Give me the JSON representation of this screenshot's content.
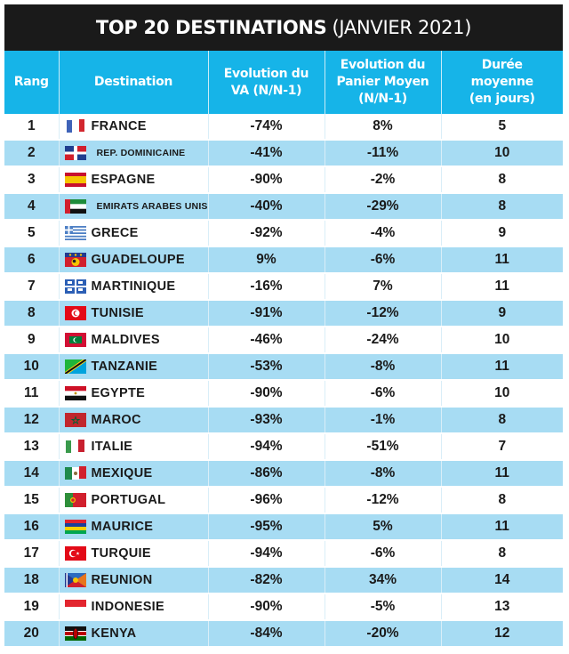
{
  "title": {
    "strong": "TOP 20 DESTINATIONS",
    "light": "(JANVIER 2021)"
  },
  "colors": {
    "title_bg": "#1a1a1a",
    "header_bg": "#16b4e8",
    "row_alt_bg": "#a7dcf3"
  },
  "headers": {
    "rang": "Rang",
    "destination": "Destination",
    "va": [
      "Evolution du",
      "VA (N/N-1)"
    ],
    "panier": [
      "Evolution du",
      "Panier Moyen",
      "(N/N-1)"
    ],
    "duree": [
      "Durée",
      "moyenne",
      "(en jours)"
    ]
  },
  "rows": [
    {
      "rang": "1",
      "flag": "france-flag-icon",
      "destination": "FRANCE",
      "va": "-74%",
      "panier": "8%",
      "duree": "5"
    },
    {
      "rang": "2",
      "flag": "dominican-republic-flag-icon",
      "destination": "REP. DOMINICAINE",
      "va": "-41%",
      "panier": "-11%",
      "duree": "10",
      "small": true
    },
    {
      "rang": "3",
      "flag": "spain-flag-icon",
      "destination": "ESPAGNE",
      "va": "-90%",
      "panier": "-2%",
      "duree": "8"
    },
    {
      "rang": "4",
      "flag": "uae-flag-icon",
      "destination": "EMIRATS ARABES UNIS",
      "va": "-40%",
      "panier": "-29%",
      "duree": "8",
      "small": true
    },
    {
      "rang": "5",
      "flag": "greece-flag-icon",
      "destination": "GRECE",
      "va": "-92%",
      "panier": "-4%",
      "duree": "9"
    },
    {
      "rang": "6",
      "flag": "guadeloupe-flag-icon",
      "destination": "GUADELOUPE",
      "va": "9%",
      "panier": "-6%",
      "duree": "11"
    },
    {
      "rang": "7",
      "flag": "martinique-flag-icon",
      "destination": "MARTINIQUE",
      "va": "-16%",
      "panier": "7%",
      "duree": "11"
    },
    {
      "rang": "8",
      "flag": "tunisia-flag-icon",
      "destination": "TUNISIE",
      "va": "-91%",
      "panier": "-12%",
      "duree": "9"
    },
    {
      "rang": "9",
      "flag": "maldives-flag-icon",
      "destination": "MALDIVES",
      "va": "-46%",
      "panier": "-24%",
      "duree": "10"
    },
    {
      "rang": "10",
      "flag": "tanzania-flag-icon",
      "destination": "TANZANIE",
      "va": "-53%",
      "panier": "-8%",
      "duree": "11"
    },
    {
      "rang": "11",
      "flag": "egypt-flag-icon",
      "destination": "EGYPTE",
      "va": "-90%",
      "panier": "-6%",
      "duree": "10"
    },
    {
      "rang": "12",
      "flag": "morocco-flag-icon",
      "destination": "MAROC",
      "va": "-93%",
      "panier": "-1%",
      "duree": "8"
    },
    {
      "rang": "13",
      "flag": "italy-flag-icon",
      "destination": "ITALIE",
      "va": "-94%",
      "panier": "-51%",
      "duree": "7"
    },
    {
      "rang": "14",
      "flag": "mexico-flag-icon",
      "destination": "MEXIQUE",
      "va": "-86%",
      "panier": "-8%",
      "duree": "11"
    },
    {
      "rang": "15",
      "flag": "portugal-flag-icon",
      "destination": "PORTUGAL",
      "va": "-96%",
      "panier": "-12%",
      "duree": "8"
    },
    {
      "rang": "16",
      "flag": "mauritius-flag-icon",
      "destination": "MAURICE",
      "va": "-95%",
      "panier": "5%",
      "duree": "11"
    },
    {
      "rang": "17",
      "flag": "turkey-flag-icon",
      "destination": "TURQUIE",
      "va": "-94%",
      "panier": "-6%",
      "duree": "8"
    },
    {
      "rang": "18",
      "flag": "reunion-flag-icon",
      "destination": "REUNION",
      "va": "-82%",
      "panier": "34%",
      "duree": "14"
    },
    {
      "rang": "19",
      "flag": "indonesia-flag-icon",
      "destination": "INDONESIE",
      "va": "-90%",
      "panier": "-5%",
      "duree": "13"
    },
    {
      "rang": "20",
      "flag": "kenya-flag-icon",
      "destination": "KENYA",
      "va": "-84%",
      "panier": "-20%",
      "duree": "12"
    }
  ]
}
